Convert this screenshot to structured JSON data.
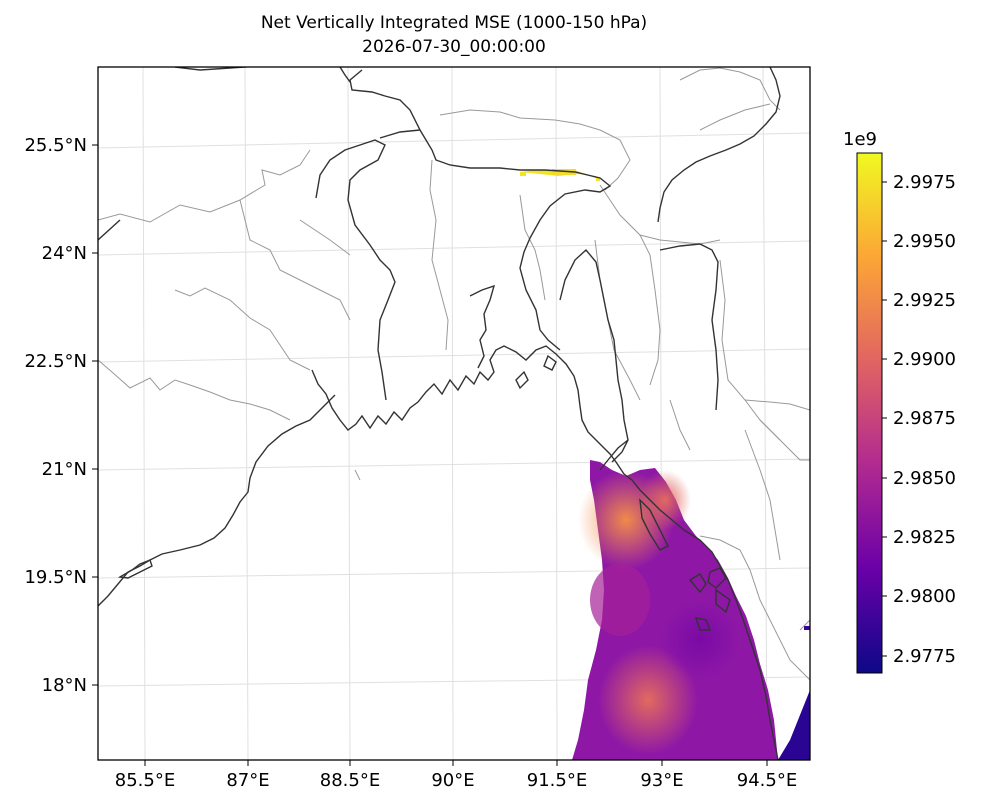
{
  "title": "Net Vertically Integrated MSE (1000-150 hPa)",
  "subtitle": "2026-07-30_00:00:00",
  "lon_labels": [
    "85.5°E",
    "87°E",
    "88.5°E",
    "90°E",
    "91.5°E",
    "93°E",
    "94.5°E"
  ],
  "lat_labels": [
    "25.5°N",
    "24°N",
    "22.5°N",
    "21°N",
    "19.5°N",
    "18°N"
  ],
  "colorbar": {
    "scale_label": "1e9",
    "tick_labels": [
      "2.9975",
      "2.9950",
      "2.9925",
      "2.9900",
      "2.9875",
      "2.9850",
      "2.9825",
      "2.9800",
      "2.9775"
    ],
    "colormap": "plasma",
    "stops": [
      "#0d0887",
      "#6a00a8",
      "#b12a90",
      "#e16462",
      "#fca636",
      "#f0f921"
    ]
  },
  "colors": {
    "coastline": "#333333",
    "borders": "#999999",
    "gridlines": "#e0e0e0"
  }
}
